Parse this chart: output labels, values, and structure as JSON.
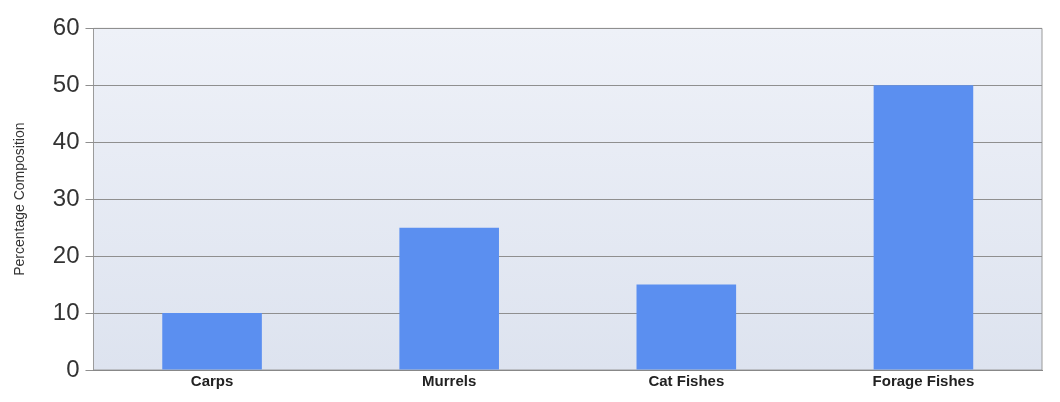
{
  "chart_data": {
    "type": "bar",
    "ylabel": "Percentage Composition",
    "categories": [
      "Carps",
      "Murrels",
      "Cat Fishes",
      "Forage Fishes"
    ],
    "values": [
      10,
      25,
      15,
      50
    ],
    "color": "#5b8ff0",
    "ylim": [
      0,
      60
    ],
    "yticks": [
      0,
      10,
      20,
      30,
      40,
      50,
      60
    ],
    "grid": "y"
  }
}
